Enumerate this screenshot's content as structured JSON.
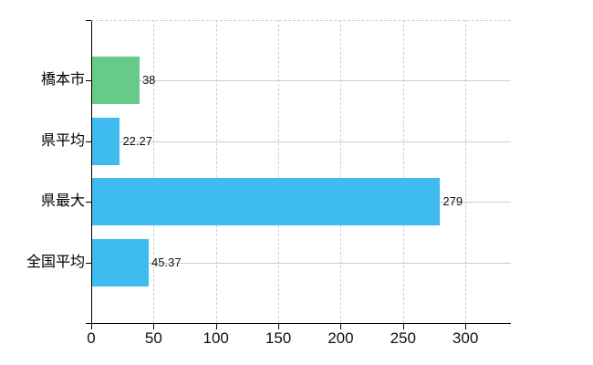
{
  "chart_data": {
    "type": "bar",
    "orientation": "horizontal",
    "title": "",
    "xlabel": "",
    "ylabel": "",
    "categories": [
      "橋本市",
      "県平均",
      "県最大",
      "全国平均"
    ],
    "series": [
      {
        "name": "value",
        "values": [
          38,
          22.27,
          279,
          45.37
        ]
      }
    ],
    "value_labels": [
      "38",
      "22.27",
      "279",
      "45.37"
    ],
    "bar_colors": [
      "#66cb88",
      "#3fbcef",
      "#3fbcef",
      "#3fbcef"
    ],
    "x_ticks": [
      0,
      50,
      100,
      150,
      200,
      250,
      300
    ],
    "x_tick_labels": [
      "0",
      "50",
      "100",
      "150",
      "200",
      "250",
      "300"
    ],
    "xlim": [
      0,
      336.5
    ],
    "legend": "none",
    "grid": {
      "vertical": "dashed",
      "horizontal": "solid-row-center",
      "top_border": "dashed"
    }
  },
  "colors": {
    "green_bar": "#66cb88",
    "blue_bar": "#3fbcef",
    "gridline": "#cdcdcd",
    "axis": "#000000",
    "text": "#111111",
    "background": "#ffffff"
  }
}
